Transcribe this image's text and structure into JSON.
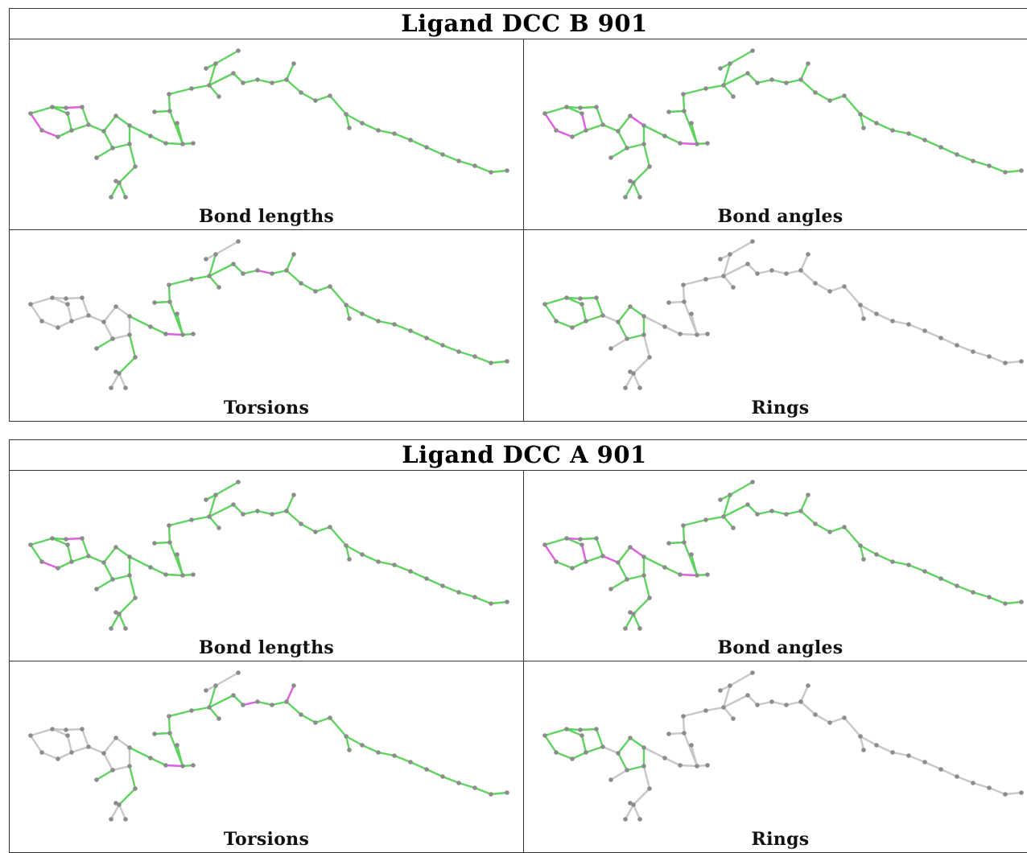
{
  "colors": {
    "ok_bond": "#5fd35f",
    "outlier_bond": "#e05ce0",
    "neutral_bond": "#c8c8c8",
    "atom": "#8c8c8c"
  },
  "tables": [
    {
      "title": "Ligand DCC B 901",
      "panels": [
        {
          "caption": "Bond lengths",
          "mode": "lengths",
          "outliers": [
            [
              0,
              1
            ],
            [
              1,
              2
            ],
            [
              6,
              7
            ],
            [
              15,
              24
            ]
          ]
        },
        {
          "caption": "Bond angles",
          "mode": "angles",
          "outliers": [
            [
              0,
              1
            ],
            [
              1,
              2
            ],
            [
              3,
              4
            ],
            [
              12,
              13
            ],
            [
              16,
              19
            ],
            [
              17,
              18
            ],
            [
              21,
              22
            ],
            [
              30,
              31
            ]
          ]
        },
        {
          "caption": "Torsions",
          "mode": "torsions",
          "outliers": [
            [
              21,
              22
            ],
            [
              30,
              31
            ],
            [
              33,
              34
            ],
            [
              36,
              37
            ],
            [
              39,
              40
            ]
          ]
        },
        {
          "caption": "Rings",
          "mode": "rings",
          "outliers": []
        }
      ]
    },
    {
      "title": "Ligand DCC A 901",
      "panels": [
        {
          "caption": "Bond lengths",
          "mode": "lengths",
          "outliers": [
            [
              1,
              2
            ],
            [
              6,
              7
            ],
            [
              13,
              16
            ],
            [
              30,
              31
            ]
          ]
        },
        {
          "caption": "Bond angles",
          "mode": "angles",
          "outliers": [
            [
              0,
              1
            ],
            [
              3,
              4
            ],
            [
              5,
              6
            ],
            [
              8,
              9
            ],
            [
              12,
              13
            ],
            [
              16,
              19
            ],
            [
              17,
              18
            ],
            [
              21,
              22
            ],
            [
              30,
              31
            ]
          ]
        },
        {
          "caption": "Torsions",
          "mode": "torsions",
          "outliers": [
            [
              13,
              15
            ],
            [
              21,
              22
            ],
            [
              35,
              36
            ],
            [
              38,
              39
            ]
          ]
        },
        {
          "caption": "Rings",
          "mode": "rings",
          "outliers": []
        }
      ]
    }
  ]
}
